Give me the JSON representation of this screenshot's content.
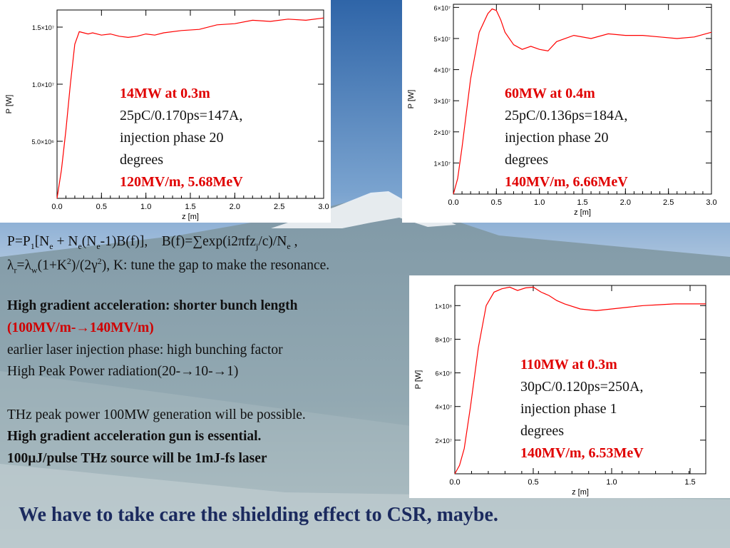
{
  "colors": {
    "curve": "#ff0000",
    "annotation_red": "#e00000",
    "conclusion": "#1b2a5e",
    "sky_top": "#2f65a8",
    "snow": "#f1f4f6"
  },
  "chart_data": [
    {
      "type": "line",
      "xlabel": "z [m]",
      "ylabel": "P [W]",
      "xlim": [
        0,
        3.0
      ],
      "ylim": [
        0,
        16500000
      ],
      "xticks": [
        "0.0",
        "0.5",
        "1.0",
        "1.5",
        "2.0",
        "2.5",
        "3.0"
      ],
      "yticks": [
        {
          "v": 5000000,
          "label": "5.0×10⁶"
        },
        {
          "v": 10000000,
          "label": "1.0×10⁷"
        },
        {
          "v": 15000000,
          "label": "1.5×10⁷"
        }
      ],
      "x": [
        0,
        0.05,
        0.1,
        0.15,
        0.2,
        0.25,
        0.3,
        0.35,
        0.4,
        0.5,
        0.6,
        0.7,
        0.8,
        0.9,
        1.0,
        1.1,
        1.2,
        1.4,
        1.6,
        1.8,
        2.0,
        2.2,
        2.4,
        2.6,
        2.8,
        3.0
      ],
      "values": [
        0,
        2500000,
        6000000,
        10000000,
        13500000,
        14600000,
        14500000,
        14400000,
        14500000,
        14300000,
        14400000,
        14200000,
        14100000,
        14200000,
        14400000,
        14300000,
        14500000,
        14700000,
        14800000,
        15200000,
        15300000,
        15600000,
        15500000,
        15700000,
        15600000,
        15800000
      ],
      "grid": false,
      "annotation": {
        "line1": "14MW at 0.3m",
        "line2": "25pC/0.170ps=147A,",
        "line3": "injection phase 20",
        "line4": "degrees",
        "line5": "120MV/m, 5.68MeV"
      }
    },
    {
      "type": "line",
      "xlabel": "z [m]",
      "ylabel": "P [W]",
      "xlim": [
        0,
        3.0
      ],
      "ylim": [
        0,
        61000000
      ],
      "xticks": [
        "0.0",
        "0.5",
        "1.0",
        "1.5",
        "2.0",
        "2.5",
        "3.0"
      ],
      "yticks": [
        {
          "v": 10000000,
          "label": "1×10⁷"
        },
        {
          "v": 20000000,
          "label": "2×10⁷"
        },
        {
          "v": 30000000,
          "label": "3×10⁷"
        },
        {
          "v": 40000000,
          "label": "4×10⁷"
        },
        {
          "v": 50000000,
          "label": "5×10⁷"
        },
        {
          "v": 60000000,
          "label": "6×10⁷"
        }
      ],
      "x": [
        0,
        0.05,
        0.1,
        0.2,
        0.3,
        0.4,
        0.45,
        0.5,
        0.55,
        0.6,
        0.7,
        0.8,
        0.9,
        1.0,
        1.1,
        1.2,
        1.4,
        1.6,
        1.8,
        2.0,
        2.2,
        2.4,
        2.6,
        2.8,
        3.0
      ],
      "values": [
        0,
        5000000,
        15000000,
        37000000,
        52000000,
        58000000,
        59500000,
        59000000,
        56000000,
        52000000,
        48000000,
        46500000,
        47500000,
        46500000,
        46000000,
        49000000,
        51000000,
        50000000,
        51500000,
        51000000,
        51000000,
        50500000,
        50000000,
        50500000,
        52000000
      ],
      "grid": false,
      "annotation": {
        "line1": "60MW at 0.4m",
        "line2": "25pC/0.136ps=184A,",
        "line3": "injection phase 20",
        "line4": "degrees",
        "line5": "140MV/m, 6.66MeV"
      }
    },
    {
      "type": "line",
      "xlabel": "z [m]",
      "ylabel": "P [W]",
      "xlim": [
        0,
        1.6
      ],
      "ylim": [
        0,
        112000000
      ],
      "xticks": [
        "0.0",
        "0.5",
        "1.0",
        "1.5"
      ],
      "yticks": [
        {
          "v": 20000000,
          "label": "2×10⁷"
        },
        {
          "v": 40000000,
          "label": "4×10⁷"
        },
        {
          "v": 60000000,
          "label": "6×10⁷"
        },
        {
          "v": 80000000,
          "label": "8×10⁷"
        },
        {
          "v": 100000000,
          "label": "1×10⁸"
        }
      ],
      "x": [
        0,
        0.03,
        0.06,
        0.1,
        0.15,
        0.2,
        0.25,
        0.3,
        0.35,
        0.4,
        0.45,
        0.5,
        0.55,
        0.6,
        0.65,
        0.7,
        0.8,
        0.9,
        1.0,
        1.1,
        1.2,
        1.3,
        1.4,
        1.5,
        1.6
      ],
      "values": [
        0,
        5000000,
        15000000,
        40000000,
        75000000,
        100000000,
        108000000,
        110000000,
        111000000,
        109000000,
        110500000,
        111000000,
        108000000,
        106000000,
        103000000,
        101000000,
        98000000,
        97000000,
        98000000,
        99000000,
        100000000,
        100500000,
        101000000,
        101000000,
        101000000
      ],
      "grid": false,
      "annotation": {
        "line1": "110MW at 0.3m",
        "line2": "30pC/0.120ps=250A,",
        "line3": "injection phase 1",
        "line4": "degrees",
        "line5": "140MV/m, 6.53MeV"
      }
    }
  ],
  "text": {
    "formula1": "P=P1[Ne + Ne(Ne-1)B(f)],    B(f)=∑exp(i2πfzj/c)/Ne ,",
    "formula2": "λr=λw(1+K2)/(2γ2), K: tune the gap to make the resonance.",
    "l1": "High gradient acceleration: shorter bunch length",
    "l2": "(100MV/m-→140MV/m)",
    "l3": "earlier laser injection phase: high bunching factor",
    "l4": "High Peak Power radiation(20-→10-→1)",
    "l5": "THz peak power 100MW generation will be possible.",
    "l6": "High gradient acceleration gun is essential.",
    "l7": "100μJ/pulse THz source will be 1mJ-fs laser",
    "conclusion": "We have to take care the shielding effect to CSR, maybe."
  }
}
